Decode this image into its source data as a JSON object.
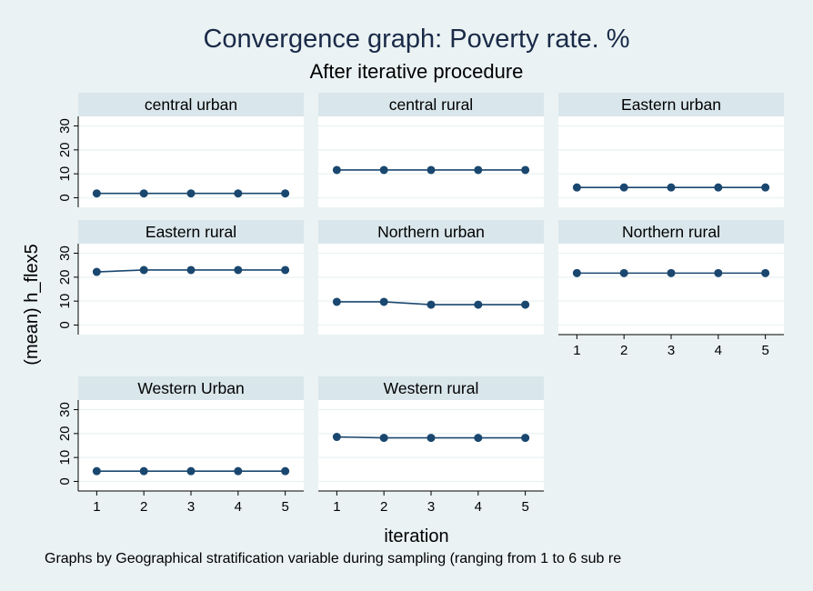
{
  "chart_data": {
    "type": "line",
    "title": "Convergence graph: Poverty rate. %",
    "subtitle": "After iterative procedure",
    "xlabel": "iteration",
    "ylabel": "(mean) h_flex5",
    "note": "Graphs by Geographical stratification variable during sampling (ranging from 1 to 6 sub re",
    "x": [
      1,
      2,
      3,
      4,
      5
    ],
    "x_ticks": [
      "1",
      "2",
      "3",
      "4",
      "5"
    ],
    "y_ticks": [
      "0",
      "10",
      "20",
      "30"
    ],
    "xlim": [
      0.8,
      5.2
    ],
    "ylim": [
      -4,
      34
    ],
    "grid": true,
    "colors": {
      "series": "#1a476f",
      "panel_header": "#d9e6eb",
      "background": "#eaf2f3",
      "grid": "#eaf2f3"
    },
    "panels": [
      {
        "name": "central urban",
        "values": [
          1.8,
          1.8,
          1.8,
          1.8,
          1.8
        ]
      },
      {
        "name": "central rural",
        "values": [
          11.6,
          11.6,
          11.6,
          11.6,
          11.6
        ]
      },
      {
        "name": "Eastern urban",
        "values": [
          4.3,
          4.3,
          4.3,
          4.3,
          4.3
        ]
      },
      {
        "name": "Eastern rural",
        "values": [
          22.2,
          23.0,
          23.0,
          23.0,
          23.0
        ]
      },
      {
        "name": "Northern urban",
        "values": [
          9.7,
          9.7,
          8.5,
          8.5,
          8.5
        ]
      },
      {
        "name": "Northern rural",
        "values": [
          21.7,
          21.7,
          21.7,
          21.7,
          21.7
        ]
      },
      {
        "name": "Western Urban",
        "values": [
          4.3,
          4.3,
          4.3,
          4.3,
          4.3
        ]
      },
      {
        "name": "Western rural",
        "values": [
          18.6,
          18.2,
          18.2,
          18.2,
          18.2
        ]
      }
    ]
  }
}
